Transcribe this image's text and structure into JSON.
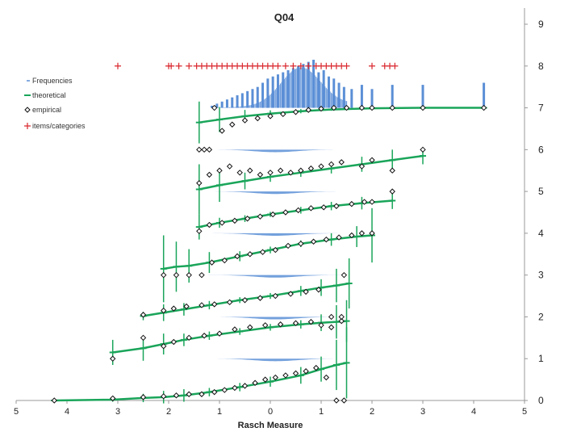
{
  "chart_data": {
    "type": "scatter",
    "title": "Q04",
    "xlabel": "Rasch Measure",
    "ylabel": "",
    "xlim": [
      -5,
      5
    ],
    "ylim": [
      0,
      9
    ],
    "x_tick_labels": [
      "5",
      "4",
      "3",
      "2",
      "1",
      "0",
      "1",
      "2",
      "3",
      "4",
      "5"
    ],
    "y_tick_labels": [
      "0",
      "1",
      "2",
      "3",
      "4",
      "5",
      "6",
      "7",
      "8",
      "9"
    ],
    "y_axis_side": "right",
    "legend": {
      "placement": "top-left",
      "entries": [
        "Frequencies",
        "theoretical",
        "empirical",
        "items/categories"
      ]
    },
    "colors": {
      "frequencies": "#5b8fd6",
      "theoretical": "#1aa55a",
      "empirical": "#111111",
      "items": "#d9262c",
      "axis": "#999999"
    },
    "items_categories_y": 8,
    "items_categories_x": [
      -3.0,
      -2.0,
      -1.95,
      -1.8,
      -1.6,
      -1.45,
      -1.35,
      -1.25,
      -1.15,
      -1.05,
      -0.95,
      -0.85,
      -0.75,
      -0.65,
      -0.55,
      -0.45,
      -0.35,
      -0.25,
      -0.15,
      -0.05,
      0.05,
      0.15,
      0.3,
      0.45,
      0.6,
      0.75,
      0.9,
      1.0,
      1.1,
      1.2,
      1.3,
      1.4,
      1.5,
      2.0,
      2.25,
      2.35,
      2.45
    ],
    "frequency_bars": [
      {
        "x": -1.15,
        "top": 7.05
      },
      {
        "x": -1.05,
        "top": 7.1
      },
      {
        "x": -0.95,
        "top": 7.15
      },
      {
        "x": -0.85,
        "top": 7.2
      },
      {
        "x": -0.75,
        "top": 7.25
      },
      {
        "x": -0.65,
        "top": 7.3
      },
      {
        "x": -0.55,
        "top": 7.35
      },
      {
        "x": -0.45,
        "top": 7.4
      },
      {
        "x": -0.35,
        "top": 7.45
      },
      {
        "x": -0.25,
        "top": 7.5
      },
      {
        "x": -0.15,
        "top": 7.6
      },
      {
        "x": -0.05,
        "top": 7.7
      },
      {
        "x": 0.05,
        "top": 7.75
      },
      {
        "x": 0.15,
        "top": 7.8
      },
      {
        "x": 0.25,
        "top": 7.85
      },
      {
        "x": 0.35,
        "top": 7.9
      },
      {
        "x": 0.45,
        "top": 7.95
      },
      {
        "x": 0.55,
        "top": 8.0
      },
      {
        "x": 0.65,
        "top": 8.05
      },
      {
        "x": 0.75,
        "top": 8.1
      },
      {
        "x": 0.85,
        "top": 8.15
      },
      {
        "x": 0.95,
        "top": 7.85
      },
      {
        "x": 1.05,
        "top": 7.9
      },
      {
        "x": 1.15,
        "top": 7.75
      },
      {
        "x": 1.25,
        "top": 7.7
      },
      {
        "x": 1.35,
        "top": 7.6
      },
      {
        "x": 1.45,
        "top": 7.5
      },
      {
        "x": 1.6,
        "top": 7.45
      },
      {
        "x": 1.8,
        "top": 7.55
      },
      {
        "x": 2.0,
        "top": 7.45
      },
      {
        "x": 2.4,
        "top": 7.55
      },
      {
        "x": 3.0,
        "top": 7.55
      },
      {
        "x": 4.2,
        "top": 7.6
      }
    ],
    "category_panels": [
      {
        "category": 0,
        "empirical": [
          {
            "x": -4.25,
            "y": 0.0
          },
          {
            "x": -3.1,
            "y": 0.05
          },
          {
            "x": -2.5,
            "y": 0.08
          },
          {
            "x": -2.1,
            "y": 0.1
          },
          {
            "x": -1.85,
            "y": 0.12
          },
          {
            "x": -1.6,
            "y": 0.15
          },
          {
            "x": -1.35,
            "y": 0.15
          },
          {
            "x": -1.1,
            "y": 0.2
          },
          {
            "x": -0.9,
            "y": 0.25
          },
          {
            "x": -0.7,
            "y": 0.3
          },
          {
            "x": -0.5,
            "y": 0.35
          },
          {
            "x": -0.3,
            "y": 0.42
          },
          {
            "x": -0.1,
            "y": 0.5
          },
          {
            "x": 0.1,
            "y": 0.55
          },
          {
            "x": 0.3,
            "y": 0.6
          },
          {
            "x": 0.5,
            "y": 0.65
          },
          {
            "x": 0.7,
            "y": 0.7
          },
          {
            "x": 0.9,
            "y": 0.78
          },
          {
            "x": 1.1,
            "y": 0.55
          },
          {
            "x": 1.3,
            "y": 0.0
          },
          {
            "x": 1.45,
            "y": 0.0
          }
        ],
        "theoretical": [
          {
            "x": -4.25,
            "y": 0.0,
            "err": 0.02
          },
          {
            "x": -3.1,
            "y": 0.02,
            "err": 0.05
          },
          {
            "x": -2.5,
            "y": 0.06,
            "err": 0.1
          },
          {
            "x": -2.1,
            "y": 0.08,
            "err": 0.15
          },
          {
            "x": -1.7,
            "y": 0.12,
            "err": 0.15
          },
          {
            "x": -1.2,
            "y": 0.2,
            "err": 0.1
          },
          {
            "x": -0.6,
            "y": 0.32,
            "err": 0.1
          },
          {
            "x": 0.0,
            "y": 0.45,
            "err": 0.12
          },
          {
            "x": 0.6,
            "y": 0.6,
            "err": 0.2
          },
          {
            "x": 1.0,
            "y": 0.75,
            "err": 0.3
          },
          {
            "x": 1.3,
            "y": 0.85,
            "err": 0.6
          },
          {
            "x": 1.5,
            "y": 0.9,
            "err": 0.85
          }
        ]
      },
      {
        "category": 1,
        "empirical": [
          {
            "x": -3.1,
            "y": 1.0
          },
          {
            "x": -2.5,
            "y": 1.5
          },
          {
            "x": -2.1,
            "y": 1.3
          },
          {
            "x": -1.9,
            "y": 1.4
          },
          {
            "x": -1.6,
            "y": 1.5
          },
          {
            "x": -1.3,
            "y": 1.55
          },
          {
            "x": -1.0,
            "y": 1.6
          },
          {
            "x": -0.7,
            "y": 1.7
          },
          {
            "x": -0.4,
            "y": 1.75
          },
          {
            "x": -0.1,
            "y": 1.8
          },
          {
            "x": 0.2,
            "y": 1.82
          },
          {
            "x": 0.5,
            "y": 1.85
          },
          {
            "x": 0.8,
            "y": 1.88
          },
          {
            "x": 1.0,
            "y": 1.8
          },
          {
            "x": 1.2,
            "y": 1.75
          },
          {
            "x": 1.4,
            "y": 1.9
          }
        ],
        "theoretical": [
          {
            "x": -3.1,
            "y": 1.15,
            "err": 0.3
          },
          {
            "x": -2.5,
            "y": 1.25,
            "err": 0.3
          },
          {
            "x": -2.1,
            "y": 1.35,
            "err": 0.25
          },
          {
            "x": -1.7,
            "y": 1.45,
            "err": 0.15
          },
          {
            "x": -1.2,
            "y": 1.55,
            "err": 0.1
          },
          {
            "x": -0.6,
            "y": 1.65,
            "err": 0.08
          },
          {
            "x": 0.0,
            "y": 1.75,
            "err": 0.08
          },
          {
            "x": 0.6,
            "y": 1.82,
            "err": 0.1
          },
          {
            "x": 1.0,
            "y": 1.86,
            "err": 0.2
          },
          {
            "x": 1.3,
            "y": 1.88,
            "err": 0.4
          },
          {
            "x": 1.5,
            "y": 1.9,
            "err": 0.5
          }
        ]
      },
      {
        "category": 2,
        "empirical": [
          {
            "x": -2.5,
            "y": 2.05
          },
          {
            "x": -2.1,
            "y": 2.15
          },
          {
            "x": -1.9,
            "y": 2.2
          },
          {
            "x": -1.65,
            "y": 2.25
          },
          {
            "x": -1.35,
            "y": 2.28
          },
          {
            "x": -1.1,
            "y": 2.3
          },
          {
            "x": -0.8,
            "y": 2.35
          },
          {
            "x": -0.5,
            "y": 2.4
          },
          {
            "x": -0.2,
            "y": 2.45
          },
          {
            "x": 0.1,
            "y": 2.5
          },
          {
            "x": 0.4,
            "y": 2.55
          },
          {
            "x": 0.7,
            "y": 2.6
          },
          {
            "x": 0.95,
            "y": 2.65
          },
          {
            "x": 1.2,
            "y": 2.0
          },
          {
            "x": 1.4,
            "y": 2.0
          },
          {
            "x": 1.45,
            "y": 3.0
          }
        ],
        "theoretical": [
          {
            "x": -2.5,
            "y": 2.02,
            "err": 0.1
          },
          {
            "x": -2.1,
            "y": 2.1,
            "err": 0.2
          },
          {
            "x": -1.7,
            "y": 2.18,
            "err": 0.15
          },
          {
            "x": -1.2,
            "y": 2.28,
            "err": 0.1
          },
          {
            "x": -0.6,
            "y": 2.4,
            "err": 0.07
          },
          {
            "x": 0.0,
            "y": 2.5,
            "err": 0.07
          },
          {
            "x": 0.6,
            "y": 2.62,
            "err": 0.12
          },
          {
            "x": 1.0,
            "y": 2.7,
            "err": 0.2
          },
          {
            "x": 1.3,
            "y": 2.75,
            "err": 0.4
          },
          {
            "x": 1.55,
            "y": 2.8,
            "err": 0.6
          }
        ]
      },
      {
        "category": 3,
        "empirical": [
          {
            "x": -2.1,
            "y": 3.0
          },
          {
            "x": -1.85,
            "y": 3.0
          },
          {
            "x": -1.6,
            "y": 3.0
          },
          {
            "x": -1.35,
            "y": 3.0
          },
          {
            "x": -1.15,
            "y": 3.3
          },
          {
            "x": -0.9,
            "y": 3.35
          },
          {
            "x": -0.65,
            "y": 3.45
          },
          {
            "x": -0.4,
            "y": 3.5
          },
          {
            "x": -0.15,
            "y": 3.55
          },
          {
            "x": 0.1,
            "y": 3.6
          },
          {
            "x": 0.35,
            "y": 3.7
          },
          {
            "x": 0.6,
            "y": 3.75
          },
          {
            "x": 0.85,
            "y": 3.8
          },
          {
            "x": 1.1,
            "y": 3.85
          },
          {
            "x": 1.35,
            "y": 3.9
          },
          {
            "x": 1.6,
            "y": 3.95
          },
          {
            "x": 1.8,
            "y": 4.0
          },
          {
            "x": 2.0,
            "y": 4.0
          }
        ],
        "theoretical": [
          {
            "x": -2.1,
            "y": 3.15,
            "err": 0.8
          },
          {
            "x": -1.85,
            "y": 3.2,
            "err": 0.6
          },
          {
            "x": -1.6,
            "y": 3.22,
            "err": 0.4
          },
          {
            "x": -1.2,
            "y": 3.3,
            "err": 0.25
          },
          {
            "x": -0.6,
            "y": 3.45,
            "err": 0.12
          },
          {
            "x": 0.0,
            "y": 3.6,
            "err": 0.08
          },
          {
            "x": 0.6,
            "y": 3.75,
            "err": 0.08
          },
          {
            "x": 1.2,
            "y": 3.85,
            "err": 0.15
          },
          {
            "x": 1.7,
            "y": 3.92,
            "err": 0.25
          },
          {
            "x": 2.0,
            "y": 3.95,
            "err": 0.65
          }
        ]
      },
      {
        "category": 4,
        "empirical": [
          {
            "x": -1.4,
            "y": 4.05
          },
          {
            "x": -1.2,
            "y": 4.2
          },
          {
            "x": -0.95,
            "y": 4.25
          },
          {
            "x": -0.7,
            "y": 4.3
          },
          {
            "x": -0.45,
            "y": 4.35
          },
          {
            "x": -0.2,
            "y": 4.4
          },
          {
            "x": 0.05,
            "y": 4.45
          },
          {
            "x": 0.3,
            "y": 4.5
          },
          {
            "x": 0.55,
            "y": 4.55
          },
          {
            "x": 0.8,
            "y": 4.6
          },
          {
            "x": 1.05,
            "y": 4.62
          },
          {
            "x": 1.3,
            "y": 4.65
          },
          {
            "x": 1.6,
            "y": 4.7
          },
          {
            "x": 1.85,
            "y": 4.75
          },
          {
            "x": 2.0,
            "y": 4.75
          },
          {
            "x": 2.4,
            "y": 5.0
          }
        ],
        "theoretical": [
          {
            "x": -1.4,
            "y": 4.15,
            "err": 0.3
          },
          {
            "x": -1.0,
            "y": 4.25,
            "err": 0.12
          },
          {
            "x": -0.5,
            "y": 4.35,
            "err": 0.08
          },
          {
            "x": 0.0,
            "y": 4.45,
            "err": 0.06
          },
          {
            "x": 0.6,
            "y": 4.55,
            "err": 0.08
          },
          {
            "x": 1.2,
            "y": 4.65,
            "err": 0.1
          },
          {
            "x": 1.8,
            "y": 4.72,
            "err": 0.15
          },
          {
            "x": 2.4,
            "y": 4.78,
            "err": 0.2
          }
        ]
      },
      {
        "category": 5,
        "empirical": [
          {
            "x": -1.4,
            "y": 5.2
          },
          {
            "x": -1.2,
            "y": 5.4
          },
          {
            "x": -1.0,
            "y": 5.5
          },
          {
            "x": -0.8,
            "y": 5.6
          },
          {
            "x": -0.6,
            "y": 5.45
          },
          {
            "x": -0.4,
            "y": 5.5
          },
          {
            "x": -0.2,
            "y": 5.4
          },
          {
            "x": 0.0,
            "y": 5.45
          },
          {
            "x": 0.2,
            "y": 5.5
          },
          {
            "x": 0.4,
            "y": 5.45
          },
          {
            "x": 0.6,
            "y": 5.5
          },
          {
            "x": 0.8,
            "y": 5.55
          },
          {
            "x": 1.0,
            "y": 5.6
          },
          {
            "x": 1.2,
            "y": 5.65
          },
          {
            "x": 1.4,
            "y": 5.7
          },
          {
            "x": 1.8,
            "y": 5.6
          },
          {
            "x": 2.0,
            "y": 5.75
          },
          {
            "x": 2.4,
            "y": 5.5
          },
          {
            "x": 3.0,
            "y": 6.0
          }
        ],
        "theoretical": [
          {
            "x": -1.4,
            "y": 5.05,
            "err": 0.6
          },
          {
            "x": -1.0,
            "y": 5.15,
            "err": 0.4
          },
          {
            "x": -0.5,
            "y": 5.25,
            "err": 0.2
          },
          {
            "x": 0.0,
            "y": 5.35,
            "err": 0.12
          },
          {
            "x": 0.6,
            "y": 5.45,
            "err": 0.1
          },
          {
            "x": 1.2,
            "y": 5.55,
            "err": 0.12
          },
          {
            "x": 1.8,
            "y": 5.65,
            "err": 0.18
          },
          {
            "x": 2.4,
            "y": 5.75,
            "err": 0.25
          },
          {
            "x": 3.0,
            "y": 5.85,
            "err": 0.2
          }
        ]
      },
      {
        "category": 6,
        "empirical": [
          {
            "x": -1.4,
            "y": 6.0
          },
          {
            "x": -1.3,
            "y": 6.0
          },
          {
            "x": -1.2,
            "y": 6.0
          },
          {
            "x": -0.95,
            "y": 6.45
          },
          {
            "x": -0.75,
            "y": 6.6
          },
          {
            "x": -0.5,
            "y": 6.7
          },
          {
            "x": -0.25,
            "y": 6.75
          },
          {
            "x": 0.0,
            "y": 6.8
          },
          {
            "x": 0.25,
            "y": 6.85
          },
          {
            "x": 0.5,
            "y": 6.9
          },
          {
            "x": 0.75,
            "y": 6.95
          },
          {
            "x": 1.0,
            "y": 6.98
          },
          {
            "x": 1.25,
            "y": 7.0
          },
          {
            "x": 1.5,
            "y": 7.0
          },
          {
            "x": 1.8,
            "y": 7.0
          },
          {
            "x": 2.0,
            "y": 7.0
          },
          {
            "x": 2.4,
            "y": 7.0
          },
          {
            "x": 3.0,
            "y": 7.0
          },
          {
            "x": 4.2,
            "y": 7.0
          },
          {
            "x": -1.1,
            "y": 7.0
          }
        ],
        "theoretical": [
          {
            "x": -1.4,
            "y": 6.65,
            "err": 0.5
          },
          {
            "x": -1.0,
            "y": 6.72,
            "err": 0.3
          },
          {
            "x": -0.5,
            "y": 6.8,
            "err": 0.15
          },
          {
            "x": 0.0,
            "y": 6.86,
            "err": 0.08
          },
          {
            "x": 0.6,
            "y": 6.92,
            "err": 0.05
          },
          {
            "x": 1.2,
            "y": 6.96,
            "err": 0.03
          },
          {
            "x": 2.0,
            "y": 6.99,
            "err": 0.02
          },
          {
            "x": 3.0,
            "y": 7.0,
            "err": 0.01
          },
          {
            "x": 4.2,
            "y": 7.0,
            "err": 0.0
          }
        ]
      }
    ]
  }
}
